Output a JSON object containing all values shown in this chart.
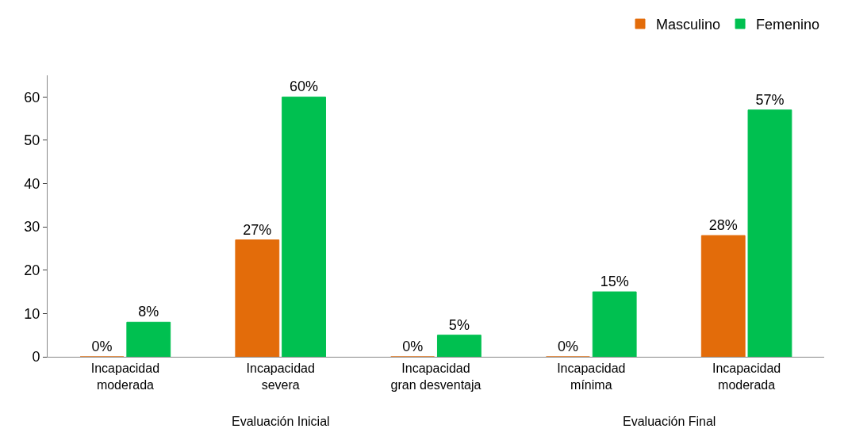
{
  "chart_data": {
    "type": "bar",
    "categories": [
      "Incapacidad\nmoderada",
      "Incapacidad\nsevera",
      "Incapacidad\ngran desventaja",
      "Incapacidad\nmínima",
      "Incapacidad\nmoderada"
    ],
    "series": [
      {
        "name": "Masculino",
        "color": "#e36c0a",
        "values": [
          0,
          27,
          0,
          0,
          28
        ],
        "value_labels": [
          "0%",
          "27%",
          "0%",
          "0%",
          "28%"
        ]
      },
      {
        "name": "Femenino",
        "color": "#00c050",
        "values": [
          8,
          60,
          5,
          15,
          57
        ],
        "value_labels": [
          "8%",
          "60%",
          "5%",
          "15%",
          "57%"
        ]
      }
    ],
    "annotations": [
      "Evaluación Inicial",
      "Evaluación Final"
    ],
    "ylim": [
      0,
      65
    ],
    "yticks": [
      0,
      10,
      20,
      30,
      40,
      50,
      60
    ],
    "legend": "top right"
  }
}
